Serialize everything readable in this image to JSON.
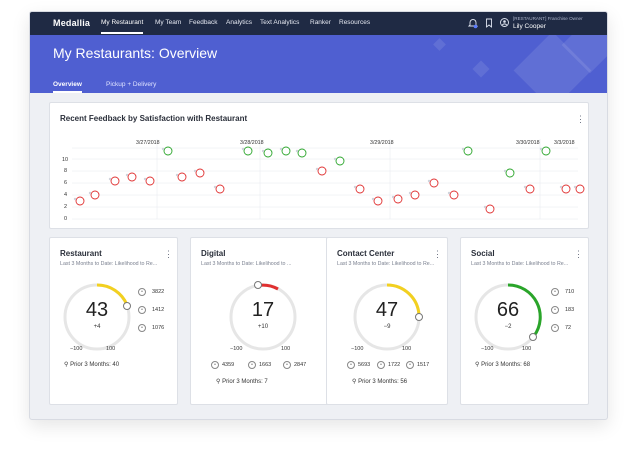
{
  "app": {
    "logo": "Medallia"
  },
  "nav": [
    {
      "label": "My Restaurant",
      "active": true
    },
    {
      "label": "My Team"
    },
    {
      "label": "Feedback"
    },
    {
      "label": "Analytics"
    },
    {
      "label": "Text Analytics"
    },
    {
      "label": "Ranker"
    },
    {
      "label": "Resources"
    }
  ],
  "user": {
    "role": "[RESTAURANT] Franchise Owner",
    "name": "Lily Cooper"
  },
  "page": {
    "title": "My Restaurants: Overview"
  },
  "subtabs": [
    {
      "label": "Overview",
      "active": true
    },
    {
      "label": "Pickup + Delivery"
    }
  ],
  "timeline": {
    "title": "Recent Feedback by Satisfaction with Restaurant",
    "dates": [
      "3/27/2018",
      "3/28/2018",
      "3/29/2018",
      "3/30/2018",
      "3/3/2018"
    ],
    "yticks": [
      "10",
      "8",
      "6",
      "4",
      "2",
      "0"
    ]
  },
  "cards": [
    {
      "title": "Restaurant",
      "subtitle": "Last 3 Months to Date: Likelihood to Re...",
      "score": "43",
      "delta": "+4",
      "min": "−100",
      "max": "100",
      "prior": "Prior 3 Months: 40",
      "counts": [
        "3822",
        "1412",
        "1076"
      ]
    },
    {
      "title": "Digital",
      "subtitle": "Last 3 Months to Date: Likelihood to ...",
      "score": "17",
      "delta": "+10",
      "min": "−100",
      "max": "100",
      "prior": "Prior 3 Months: 7",
      "counts": [
        "4359",
        "1663",
        "2847"
      ]
    },
    {
      "title": "Contact Center",
      "subtitle": "Last 3 Months to Date: Likelihood to Re...",
      "score": "47",
      "delta": "−9",
      "min": "−100",
      "max": "100",
      "prior": "Prior 3 Months: 56",
      "counts": [
        "5693",
        "1722",
        "1517"
      ]
    },
    {
      "title": "Social",
      "subtitle": "Last 3 Months to Date: Likelihood to Re...",
      "score": "66",
      "delta": "−2",
      "min": "−100",
      "max": "100",
      "prior": "Prior 3 Months: 68",
      "counts": [
        "710",
        "183",
        "72"
      ]
    }
  ],
  "colors": {
    "topbar": "#1f2a44",
    "banner": "#4f5fd1",
    "promoter": "#2aa52a",
    "passive": "#f2d020",
    "detractor": "#e03030"
  }
}
